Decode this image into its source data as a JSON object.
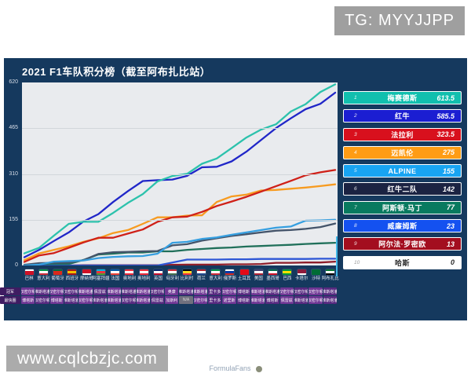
{
  "overlays": {
    "tg_badge": "TG: MYYJJPP",
    "watermark": "www.cqlcbzjc.com"
  },
  "panel": {
    "title": "2021 F1车队积分榜（截至阿布扎比站）"
  },
  "footer": {
    "brand": "FormulaFans"
  },
  "standings": {
    "rows": [
      {
        "rank": "1",
        "team": "梅赛德斯",
        "points": "613.5",
        "bg": "#11bfae",
        "fg": "#ffffff"
      },
      {
        "rank": "2",
        "team": "红牛",
        "points": "585.5",
        "bg": "#1b1ed2",
        "fg": "#ffffff"
      },
      {
        "rank": "3",
        "team": "法拉利",
        "points": "323.5",
        "bg": "#d8101d",
        "fg": "#ffffff"
      },
      {
        "rank": "4",
        "team": "迈凯伦",
        "points": "275",
        "bg": "#ff9c15",
        "fg": "#ffffff"
      },
      {
        "rank": "5",
        "team": "ALPINE",
        "points": "155",
        "bg": "#18a4f2",
        "fg": "#ffffff"
      },
      {
        "rank": "6",
        "team": "红牛二队",
        "points": "142",
        "bg": "#1b2342",
        "fg": "#ffffff"
      },
      {
        "rank": "7",
        "team": "阿斯顿·马丁",
        "points": "77",
        "bg": "#087a5f",
        "fg": "#ffffff"
      },
      {
        "rank": "8",
        "team": "威廉姆斯",
        "points": "23",
        "bg": "#1451f0",
        "fg": "#ffffff"
      },
      {
        "rank": "9",
        "team": "阿尔法·罗密欧",
        "points": "13",
        "bg": "#a30e1f",
        "fg": "#ffffff"
      },
      {
        "rank": "10",
        "team": "哈斯",
        "points": "0",
        "bg": "#ffffff",
        "fg": "#2a2a2a"
      }
    ]
  },
  "results_band": {
    "rows": [
      {
        "label": "冠军",
        "cells": [
          "汉密尔顿",
          "维斯塔潘",
          "汉密尔顿",
          "汉密尔顿",
          "维斯塔潘",
          "佩雷兹",
          "维斯塔潘",
          "维斯塔潘",
          "维斯塔潘",
          "汉密尔顿",
          "奥康",
          "维斯塔潘",
          "维斯塔潘",
          "里卡多",
          "汉密尔顿",
          "博塔斯",
          "维斯塔潘",
          "维斯塔潘",
          "汉密尔顿",
          "汉密尔顿",
          "汉密尔顿",
          "维斯塔潘"
        ]
      },
      {
        "label": "最快圈",
        "cells": [
          "博塔斯",
          "汉密尔顿",
          "博塔斯",
          "维斯塔潘",
          "汉密尔顿",
          "维斯塔潘",
          "维斯塔潘",
          "汉密尔顿",
          "维斯塔潘",
          "佩雷兹",
          "加斯利",
          "N/A",
          "汉密尔顿",
          "里卡多",
          "诺里斯",
          "博塔斯",
          "维斯塔潘",
          "博塔斯",
          "佩雷兹",
          "维斯塔潘",
          "汉密尔顿",
          "维斯塔潘"
        ]
      }
    ],
    "cell_colors": {
      "even": "#6f3694",
      "odd": "#572a80",
      "na_bg": "#70707e",
      "na_fg": "#d8d8d8"
    }
  },
  "chart_data": {
    "type": "line",
    "title": "2021 F1车队积分榜（截至阿布扎比站）",
    "xlabel": "",
    "ylabel": "",
    "ylim": [
      0,
      620
    ],
    "y_ticks": [
      620,
      465,
      310,
      155,
      0
    ],
    "grid": true,
    "legend_position": "right-ranking-panel",
    "races": [
      {
        "name": "巴林",
        "flag": [
          "#ffffff",
          "#ce1126",
          "#ce1126"
        ]
      },
      {
        "name": "意大利",
        "flag": [
          "#009246",
          "#ffffff",
          "#ce2b37"
        ]
      },
      {
        "name": "葡萄牙",
        "flag": [
          "#046a38",
          "#da291c",
          "#da291c"
        ]
      },
      {
        "name": "西班牙",
        "flag": [
          "#aa151b",
          "#f1bf00",
          "#aa151b"
        ]
      },
      {
        "name": "摩纳哥",
        "flag": [
          "#ce1126",
          "#ce1126",
          "#ffffff"
        ]
      },
      {
        "name": "阿塞拜疆",
        "flag": [
          "#00b5e2",
          "#ef3340",
          "#509e2f"
        ]
      },
      {
        "name": "法国",
        "flag": [
          "#0055a4",
          "#ffffff",
          "#ef4135"
        ]
      },
      {
        "name": "奥地利",
        "flag": [
          "#ed2939",
          "#ffffff",
          "#ed2939"
        ]
      },
      {
        "name": "奥地利",
        "flag": [
          "#ed2939",
          "#ffffff",
          "#ed2939"
        ]
      },
      {
        "name": "英国",
        "flag": [
          "#012169",
          "#ffffff",
          "#c8102e"
        ]
      },
      {
        "name": "匈牙利",
        "flag": [
          "#ce2939",
          "#ffffff",
          "#477050"
        ]
      },
      {
        "name": "比利时",
        "flag": [
          "#000000",
          "#fdda24",
          "#ef3340"
        ]
      },
      {
        "name": "荷兰",
        "flag": [
          "#ae1c28",
          "#ffffff",
          "#21468b"
        ]
      },
      {
        "name": "意大利",
        "flag": [
          "#009246",
          "#ffffff",
          "#ce2b37"
        ]
      },
      {
        "name": "俄罗斯",
        "flag": [
          "#ffffff",
          "#0039a6",
          "#d52b1e"
        ]
      },
      {
        "name": "土耳其",
        "flag": [
          "#e30a17",
          "#e30a17",
          "#e30a17"
        ]
      },
      {
        "name": "美国",
        "flag": [
          "#3c3b6e",
          "#ffffff",
          "#b22234"
        ]
      },
      {
        "name": "墨西哥",
        "flag": [
          "#006847",
          "#ffffff",
          "#ce1126"
        ]
      },
      {
        "name": "巴西",
        "flag": [
          "#009c3b",
          "#ffdf00",
          "#009c3b"
        ]
      },
      {
        "name": "卡塔尔",
        "flag": [
          "#8d1b3d",
          "#8d1b3d",
          "#ffffff"
        ]
      },
      {
        "name": "沙特",
        "flag": [
          "#006c35",
          "#006c35",
          "#006c35"
        ]
      },
      {
        "name": "阿布扎比",
        "flag": [
          "#00732f",
          "#ffffff",
          "#000000"
        ]
      }
    ],
    "series": [
      {
        "name": "梅赛德斯",
        "color": "#2cc2ac",
        "values": [
          41,
          60,
          101,
          141,
          148,
          148,
          178,
          212,
          242,
          285,
          303,
          310.5,
          344.5,
          362.5,
          397.5,
          433.5,
          460.5,
          478.5,
          521.5,
          546.5,
          587.5,
          613.5
        ]
      },
      {
        "name": "红牛",
        "color": "#2026c8",
        "values": [
          28,
          53,
          83,
          112,
          149,
          174,
          215,
          252,
          286,
          289,
          291,
          303.5,
          332.5,
          334.5,
          352.5,
          385.5,
          425.5,
          465.5,
          498.5,
          529.5,
          547.5,
          585.5
        ]
      },
      {
        "name": "法拉利",
        "color": "#cf2018",
        "values": [
          12,
          34,
          42,
          60,
          78,
          94,
          94,
          108,
          122,
          148,
          163,
          165.5,
          181.5,
          201.5,
          216.5,
          232.5,
          250.5,
          268.5,
          286.5,
          305.5,
          315.5,
          323.5
        ]
      },
      {
        "name": "迈凯伦",
        "color": "#f79b20",
        "values": [
          18,
          41,
          53,
          65,
          80,
          92,
          110,
          120,
          141,
          163,
          163,
          169,
          170,
          215,
          234,
          240,
          254,
          256,
          260,
          264,
          269,
          275
        ]
      },
      {
        "name": "ALPINE",
        "color": "#369fe0",
        "values": [
          0,
          3,
          13,
          15,
          17,
          25,
          29,
          31,
          32,
          40,
          77,
          80,
          90,
          95,
          104,
          112,
          120,
          128,
          132,
          152,
          153,
          155
        ]
      },
      {
        "name": "红牛二队",
        "color": "#44546a",
        "values": [
          2,
          8,
          9,
          10,
          18,
          39,
          45,
          46,
          48,
          49,
          68,
          72,
          84,
          92,
          100,
          106,
          112,
          118,
          120,
          124,
          130,
          142
        ]
      },
      {
        "name": "阿斯顿·马丁",
        "color": "#20705a",
        "values": [
          1,
          5,
          5,
          5,
          19,
          37,
          40,
          44,
          44,
          48,
          48,
          53,
          56,
          59,
          61,
          64,
          66,
          68,
          70,
          73,
          75,
          77
        ]
      },
      {
        "name": "威廉姆斯",
        "color": "#2e57d6",
        "values": [
          0,
          0,
          0,
          0,
          0,
          0,
          0,
          0,
          0,
          0,
          10,
          20,
          20,
          20,
          21,
          21,
          22,
          22,
          22,
          22,
          23,
          23
        ]
      },
      {
        "name": "阿尔法·罗密欧",
        "color": "#8e1e2a",
        "values": [
          0,
          0,
          0,
          0,
          1,
          1,
          1,
          1,
          1,
          1,
          2,
          3,
          3,
          3,
          4,
          4,
          5,
          9,
          9,
          10,
          10,
          13
        ]
      },
      {
        "name": "哈斯",
        "color": "#f2f3f5",
        "values": [
          0,
          0,
          0,
          0,
          0,
          0,
          0,
          0,
          0,
          0,
          0,
          0,
          0,
          0,
          0,
          0,
          0,
          0,
          0,
          0,
          0,
          0
        ]
      }
    ]
  }
}
